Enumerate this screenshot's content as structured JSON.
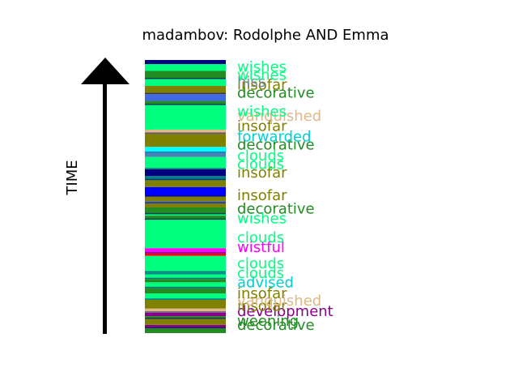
{
  "chart_data": {
    "type": "bar",
    "title": "madambov: Rodolphe AND Emma",
    "ylabel": "TIME",
    "series": [
      {
        "values": [
          {
            "value": 0.0,
            "color": "#228b22"
          },
          {
            "value": 0.018,
            "color": "#8b008b"
          },
          {
            "value": 0.03,
            "color": "#808000"
          },
          {
            "value": 0.052,
            "color": "#228b22"
          },
          {
            "value": 0.062,
            "color": "#8b008b"
          },
          {
            "value": 0.075,
            "color": "#deb887"
          },
          {
            "value": 0.09,
            "color": "#808000"
          },
          {
            "value": 0.122,
            "color": "#00ff7f"
          },
          {
            "value": 0.145,
            "color": "#228b22"
          },
          {
            "value": 0.165,
            "color": "#00ff7f"
          },
          {
            "value": 0.186,
            "color": "#228b22"
          },
          {
            "value": 0.198,
            "color": "#00ff7f"
          },
          {
            "value": 0.215,
            "color": "#008b8b"
          },
          {
            "value": 0.222,
            "color": "#00ff7f"
          },
          {
            "value": 0.283,
            "color": "#ff0000"
          },
          {
            "value": 0.292,
            "color": "#ff00ff"
          },
          {
            "value": 0.311,
            "color": "#00ff7f"
          },
          {
            "value": 0.415,
            "color": "#228b22"
          },
          {
            "value": 0.43,
            "color": "#00ff7f"
          },
          {
            "value": 0.435,
            "color": "#228b22"
          },
          {
            "value": 0.46,
            "color": "#808000"
          },
          {
            "value": 0.475,
            "color": "#4169e1"
          },
          {
            "value": 0.482,
            "color": "#808000"
          },
          {
            "value": 0.5,
            "color": "#0000ff"
          },
          {
            "value": 0.535,
            "color": "#808000"
          },
          {
            "value": 0.56,
            "color": "#008080"
          },
          {
            "value": 0.575,
            "color": "#000080"
          },
          {
            "value": 0.6,
            "color": "#00ff7f"
          },
          {
            "value": 0.645,
            "color": "#4682b4"
          },
          {
            "value": 0.66,
            "color": "#00ffff"
          },
          {
            "value": 0.682,
            "color": "#808000"
          },
          {
            "value": 0.73,
            "color": "#deb887"
          },
          {
            "value": 0.745,
            "color": "#00ff7f"
          },
          {
            "value": 0.835,
            "color": "#228b22"
          },
          {
            "value": 0.85,
            "color": "#4169e1"
          },
          {
            "value": 0.875,
            "color": "#808000"
          },
          {
            "value": 0.905,
            "color": "#00ff7f"
          },
          {
            "value": 0.93,
            "color": "#228b22"
          },
          {
            "value": 0.96,
            "color": "#00ff7f"
          },
          {
            "value": 0.985,
            "color": "#000080"
          }
        ]
      }
    ],
    "annotations": [
      {
        "text": "decorative",
        "color": "#228b22",
        "y": 0.03
      },
      {
        "text": "weening",
        "color": "#228b22",
        "y": 0.045
      },
      {
        "text": "development",
        "color": "#8b008b",
        "y": 0.08
      },
      {
        "text": "insofar",
        "color": "#808000",
        "y": 0.1
      },
      {
        "text": "vanquished",
        "color": "#deb887",
        "y": 0.118
      },
      {
        "text": "insofar",
        "color": "#808000",
        "y": 0.145
      },
      {
        "text": "advised",
        "color": "#00ced1",
        "y": 0.185
      },
      {
        "text": "clouds",
        "color": "#00ff7f",
        "y": 0.22
      },
      {
        "text": "clouds",
        "color": "#00ff7f",
        "y": 0.255
      },
      {
        "text": "wistful",
        "color": "#ff00ff",
        "y": 0.315
      },
      {
        "text": "clouds",
        "color": "#00ff7f",
        "y": 0.35
      },
      {
        "text": "wishes",
        "color": "#00ff7f",
        "y": 0.42
      },
      {
        "text": "decorative",
        "color": "#228b22",
        "y": 0.455
      },
      {
        "text": "insofar",
        "color": "#808000",
        "y": 0.505
      },
      {
        "text": "insofar",
        "color": "#808000",
        "y": 0.588
      },
      {
        "text": "clouds",
        "color": "#00ff7f",
        "y": 0.618
      },
      {
        "text": "clouds",
        "color": "#00ff7f",
        "y": 0.65
      },
      {
        "text": "decorative",
        "color": "#228b22",
        "y": 0.69
      },
      {
        "text": "forwarded",
        "color": "#00ced1",
        "y": 0.72
      },
      {
        "text": "insofar",
        "color": "#808000",
        "y": 0.758
      },
      {
        "text": "vanquished",
        "color": "#deb887",
        "y": 0.795
      },
      {
        "text": "wishes",
        "color": "#00ff7f",
        "y": 0.812
      },
      {
        "text": "decorative",
        "color": "#228b22",
        "y": 0.88
      },
      {
        "text": "insofar",
        "color": "#808000",
        "y": 0.91
      },
      {
        "text": "hiss",
        "color": "#778899",
        "y": 0.92
      },
      {
        "text": "wishes",
        "color": "#00ff7f",
        "y": 0.945
      },
      {
        "text": "wishes",
        "color": "#00ff7f",
        "y": 0.975
      }
    ]
  }
}
